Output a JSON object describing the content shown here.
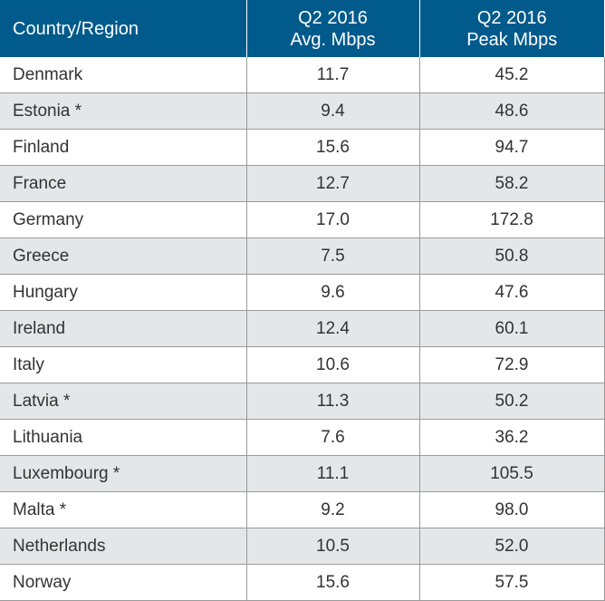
{
  "header": {
    "col1": "Country/Region",
    "col2_line1": "Q2 2016",
    "col2_line2": "Avg. Mbps",
    "col3_line1": "Q2 2016",
    "col3_line2": "Peak Mbps"
  },
  "rows": [
    {
      "country": "Denmark",
      "avg": "11.7",
      "peak": "45.2"
    },
    {
      "country": "Estonia *",
      "avg": "9.4",
      "peak": "48.6"
    },
    {
      "country": "Finland",
      "avg": "15.6",
      "peak": "94.7"
    },
    {
      "country": "France",
      "avg": "12.7",
      "peak": "58.2"
    },
    {
      "country": "Germany",
      "avg": "17.0",
      "peak": "172.8"
    },
    {
      "country": "Greece",
      "avg": "7.5",
      "peak": "50.8"
    },
    {
      "country": "Hungary",
      "avg": "9.6",
      "peak": "47.6"
    },
    {
      "country": "Ireland",
      "avg": "12.4",
      "peak": "60.1"
    },
    {
      "country": "Italy",
      "avg": "10.6",
      "peak": "72.9"
    },
    {
      "country": "Latvia *",
      "avg": "11.3",
      "peak": "50.2"
    },
    {
      "country": "Lithuania",
      "avg": "7.6",
      "peak": "36.2"
    },
    {
      "country": "Luxembourg *",
      "avg": "11.1",
      "peak": "105.5"
    },
    {
      "country": "Malta *",
      "avg": "9.2",
      "peak": "98.0"
    },
    {
      "country": "Netherlands",
      "avg": "10.5",
      "peak": "52.0"
    },
    {
      "country": "Norway",
      "avg": "15.6",
      "peak": "57.5"
    }
  ],
  "colors": {
    "header_bg": "#005a8c",
    "header_text": "#ffffff",
    "row_alt_bg": "#e5e6e8",
    "grid_line": "#9a9a9a"
  }
}
